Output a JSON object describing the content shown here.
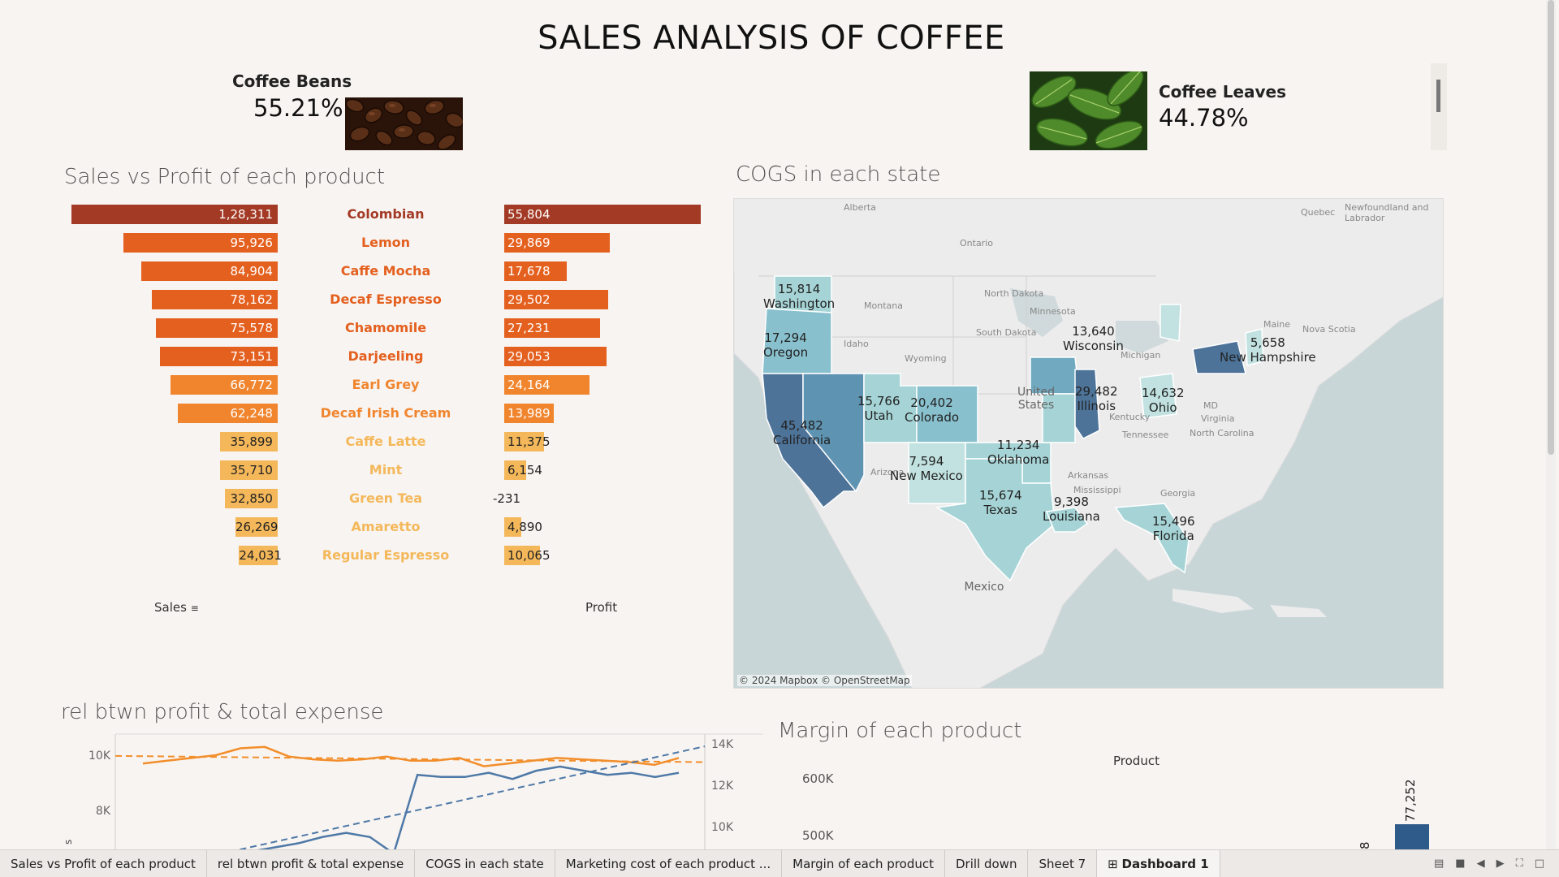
{
  "dashboard": {
    "title": "SALES ANALYSIS OF COFFEE"
  },
  "kpis": {
    "beans": {
      "label": "Coffee Beans",
      "value": "55.21%",
      "image": "coffee-beans-photo"
    },
    "leaves": {
      "label": "Coffee Leaves",
      "value": "44.78%",
      "image": "coffee-leaves-photo"
    }
  },
  "sales_profit": {
    "title": "Sales vs Profit of each product",
    "sales_axis_label": "Sales",
    "profit_axis_label": "Profit",
    "sort_icon": "sort-descending-icon"
  },
  "cogs_map": {
    "title": "COGS in each state",
    "attribution": "© 2024 Mapbox © OpenStreetMap",
    "base_labels": [
      "Alberta",
      "Quebec",
      "Newfoundland and Labrador",
      "Ontario",
      "Montana",
      "North Dakota",
      "Minnesota",
      "Maine",
      "Nova Scotia",
      "South Dakota",
      "Idaho",
      "Wyoming",
      "Michigan",
      "United States",
      "Kentucky",
      "Virginia",
      "MD",
      "Tennessee",
      "North Carolina",
      "Arizona",
      "Arkansas",
      "Mississippi",
      "Georgia",
      "Mexico"
    ],
    "states": [
      {
        "value": "15,814",
        "name": "Washington"
      },
      {
        "value": "17,294",
        "name": "Oregon"
      },
      {
        "value": "45,482",
        "name": "California"
      },
      {
        "value": "15,766",
        "name": "Utah"
      },
      {
        "value": "20,402",
        "name": "Colorado"
      },
      {
        "value": "7,594",
        "name": "New Mexico"
      },
      {
        "value": "11,234",
        "name": "Oklahoma"
      },
      {
        "value": "15,674",
        "name": "Texas"
      },
      {
        "value": "9,398",
        "name": "Louisiana"
      },
      {
        "value": "13,640",
        "name": "Wisconsin"
      },
      {
        "value": "29,482",
        "name": "Illinois"
      },
      {
        "value": "14,632",
        "name": "Ohio"
      },
      {
        "value": "5,658",
        "name": "New Hampshire"
      },
      {
        "value": "15,496",
        "name": "Florida"
      }
    ]
  },
  "rel_chart": {
    "title": "rel btwn profit & total expense",
    "left_ticks": [
      "10K",
      "8K"
    ],
    "right_ticks": [
      "14K",
      "12K",
      "10K"
    ],
    "left_axis_title": "s"
  },
  "margin_chart": {
    "title": "Margin of each product",
    "header": "Product",
    "ticks": [
      "600K",
      "500K"
    ],
    "bar_label": "77,252",
    "partial_label": "8"
  },
  "tabs": [
    {
      "label": "Sales vs Profit of each product",
      "active": false
    },
    {
      "label": "rel btwn profit & total expense",
      "active": false
    },
    {
      "label": "COGS in each state",
      "active": false
    },
    {
      "label": "Marketing cost of each product ...",
      "active": false
    },
    {
      "label": "Margin of each product",
      "active": false
    },
    {
      "label": "Drill down",
      "active": false
    },
    {
      "label": "Sheet 7",
      "active": false
    },
    {
      "label": "Dashboard 1",
      "active": true
    }
  ],
  "colors": {
    "top_bar": "#a33a25",
    "dark_orange": "#e4601f",
    "orange": "#f0852e",
    "light_orange": "#f4b85a",
    "map_dark": "#4d7399",
    "map_mid": "#71aac0",
    "map_light": "#a6d4d6",
    "line_blue": "#4e79a7",
    "line_orange": "#f28e2b"
  },
  "chart_data": [
    {
      "type": "bar",
      "title": "Sales vs Profit of each product",
      "categories": [
        "Colombian",
        "Lemon",
        "Caffe Mocha",
        "Decaf Espresso",
        "Chamomile",
        "Darjeeling",
        "Earl Grey",
        "Decaf Irish Cream",
        "Caffe Latte",
        "Mint",
        "Green Tea",
        "Amaretto",
        "Regular Espresso"
      ],
      "series": [
        {
          "name": "Sales",
          "values": [
            128311,
            95926,
            84904,
            78162,
            75578,
            73151,
            66772,
            62248,
            35899,
            35710,
            32850,
            26269,
            24031
          ],
          "labels": [
            "1,28,311",
            "95,926",
            "84,904",
            "78,162",
            "75,578",
            "73,151",
            "66,772",
            "62,248",
            "35,899",
            "35,710",
            "32,850",
            "26,269",
            "24,031"
          ]
        },
        {
          "name": "Profit",
          "values": [
            55804,
            29869,
            17678,
            29502,
            27231,
            29053,
            24164,
            13989,
            11375,
            6154,
            -231,
            4890,
            10065
          ],
          "labels": [
            "55,804",
            "29,869",
            "17,678",
            "29,502",
            "27,231",
            "29,053",
            "24,164",
            "13,989",
            "11,375",
            "6,154",
            "-231",
            "4,890",
            "10,065"
          ]
        }
      ],
      "xlabel": "Sales",
      "ylabel": "Profit"
    },
    {
      "type": "line",
      "title": "rel btwn profit & total expense",
      "y_left_ticks": [
        "10K",
        "8K"
      ],
      "y_right_ticks": [
        "14K",
        "12K",
        "10K"
      ],
      "series": [
        {
          "name": "",
          "axis": "left",
          "values": [
            9700,
            9800,
            9900,
            10000,
            10250,
            10300,
            9950,
            9850,
            9800,
            9850,
            9950,
            9800,
            9800,
            9900,
            9600,
            9700,
            9800,
            9900,
            9850,
            9800,
            9750,
            9650,
            9900
          ]
        },
        {
          "name": "",
          "axis": "right",
          "values": [
            8600,
            8800,
            9000,
            9200,
            9500,
            9700,
            9500,
            8700,
            12500,
            12400,
            12400,
            12600,
            12300,
            12700,
            12900,
            12700,
            12500,
            12600,
            12400,
            12600
          ]
        }
      ]
    }
  ]
}
